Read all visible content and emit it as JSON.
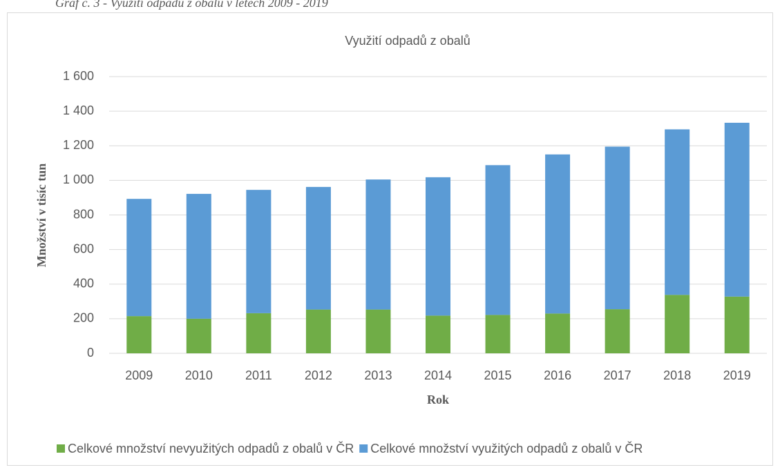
{
  "caption": "Graf č. 3 - Využití odpadů z obalů v letech 2009 - 2019",
  "chart_data": {
    "type": "stacked-bar",
    "title": "Využití odpadů z obalů",
    "xlabel": "Rok",
    "ylabel": "Množství v tisíc tun",
    "categories": [
      "2009",
      "2010",
      "2011",
      "2012",
      "2013",
      "2014",
      "2015",
      "2016",
      "2017",
      "2018",
      "2019"
    ],
    "series": [
      {
        "name": "Celkové množství nevyužitých odpadů z obalů v ČR",
        "color": "#70ad47",
        "values": [
          215,
          200,
          232,
          253,
          253,
          218,
          222,
          230,
          255,
          338,
          328
        ]
      },
      {
        "name": "Celkové množství využitých odpadů z obalů v ČR",
        "color": "#5b9bd5",
        "values": [
          678,
          722,
          713,
          709,
          752,
          800,
          866,
          920,
          940,
          957,
          1005
        ]
      }
    ],
    "ylim": [
      0,
      1600
    ],
    "yticks": [
      0,
      200,
      400,
      600,
      800,
      {
        "value": 1000,
        "label": "1 000"
      },
      {
        "value": 1200,
        "label": "1 200"
      },
      {
        "value": 1400,
        "label": "1 400"
      },
      {
        "value": 1600,
        "label": "1 600"
      }
    ],
    "grid": true,
    "legend": "bottom"
  }
}
